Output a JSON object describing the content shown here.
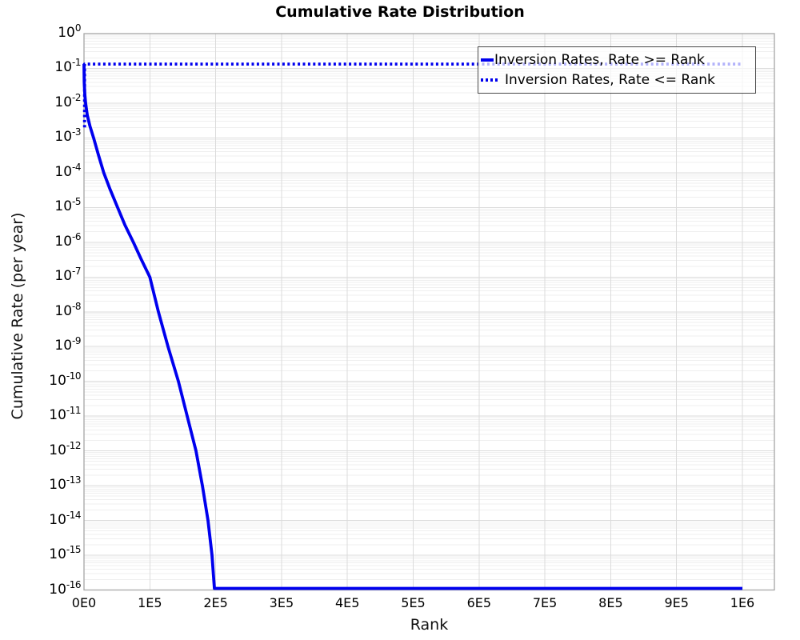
{
  "title": "Cumulative Rate Distribution",
  "colors": {
    "series_blue": "#0000EE",
    "frame": "#A6A6A6",
    "grid_major": "#DBDBDB",
    "grid_minor": "#EFEFEF",
    "legend_border": "#4D4D4D",
    "text": "#000000"
  },
  "chart_data": {
    "type": "line",
    "title": "Cumulative Rate Distribution",
    "xlabel": "Rank",
    "ylabel": "Cumulative Rate (per year)",
    "x_axis": {
      "min": 0,
      "max": 1048600,
      "tick_values": [
        0,
        100000,
        200000,
        300000,
        400000,
        500000,
        600000,
        700000,
        800000,
        900000,
        1000000
      ],
      "tick_labels": [
        "0E0",
        "1E5",
        "2E5",
        "3E5",
        "4E5",
        "5E5",
        "6E5",
        "7E5",
        "8E5",
        "9E5",
        "1E6"
      ]
    },
    "y_axis": {
      "scale": "log10",
      "min": 1e-16,
      "max": 1,
      "tick_base": "10",
      "tick_exponents": [
        0,
        -1,
        -2,
        -3,
        -4,
        -5,
        -6,
        -7,
        -8,
        -9,
        -10,
        -11,
        -12,
        -13,
        -14,
        -15,
        -16
      ]
    },
    "grid": "major+minor horizontal, major vertical",
    "legend_position": "top-right",
    "series": [
      {
        "name": "Inversion Rates, Rate >= Rank",
        "style": "solid",
        "color": "#0000EE",
        "points": [
          [
            0,
            0.134
          ],
          [
            400,
            0.04
          ],
          [
            1200,
            0.018
          ],
          [
            2400,
            0.01
          ],
          [
            5000,
            0.0045
          ],
          [
            9000,
            0.0022
          ],
          [
            14600,
            0.001
          ],
          [
            22000,
            0.00032
          ],
          [
            30000,
            0.0001
          ],
          [
            40000,
            3.2e-05
          ],
          [
            51000,
            1e-05
          ],
          [
            62000,
            3.2e-06
          ],
          [
            75000,
            1e-06
          ],
          [
            87000,
            3.2e-07
          ],
          [
            100000,
            1e-07
          ],
          [
            113000,
            1e-08
          ],
          [
            127600,
            1e-09
          ],
          [
            143400,
            1e-10
          ],
          [
            156700,
            1e-11
          ],
          [
            170100,
            1e-12
          ],
          [
            179800,
            1e-13
          ],
          [
            188300,
            1e-14
          ],
          [
            194400,
            1e-15
          ],
          [
            198100,
            1e-16
          ],
          [
            1000000,
            1e-16
          ]
        ]
      },
      {
        "name": "Inversion Rates, Rate <= Rank",
        "style": "dotted",
        "color": "#0000EE",
        "points": [
          [
            800,
            0.002
          ],
          [
            800,
            0.133
          ],
          [
            1000000,
            0.133
          ]
        ]
      }
    ]
  },
  "legend": {
    "items": [
      {
        "label": "Inversion Rates, Rate >= Rank",
        "line": "solid"
      },
      {
        "label": "Inversion Rates, Rate <= Rank",
        "line": "dotted"
      }
    ]
  }
}
